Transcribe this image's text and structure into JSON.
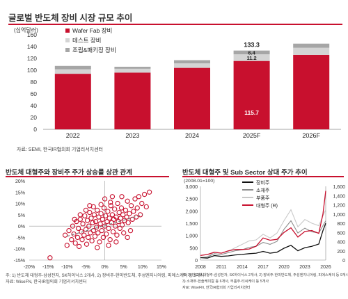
{
  "top": {
    "title": "글로벌 반도체 장비 시장 규모 추이",
    "source": "자료: SEMI, 한국IR협의회 기업리서치센터"
  },
  "scatter_panel": {
    "title": "반도체 대형주와 장비주 주가 상승률 상관 관계",
    "notes": [
      "주: 1) 반도체 대형주-삼성전자, SK하이닉스 2개사, 2) 장비주-한미반도체, 주성엔지니어링, 피에스케이 등 9개사",
      "자료: WiseFN, 한국IR협의회 기업리서치센터"
    ]
  },
  "line_panel": {
    "title": "반도체 대형주 및 Sub Sector 상대 주가 추이",
    "notes": [
      "주: 1) 반도체 대형주-삼성전자, SK하이닉스 2개사, 2) 장비주-한미반도체, 주성엔지니어링, 피에스케이 등 9개사,",
      "3) 소재주-한솔케미칼 등 6개사, 부품주-티씨케이 등 5개사",
      "자료: WiseFN, 한국IR협의회 기업리서치센터"
    ]
  },
  "colors": {
    "accent": "#c8102e",
    "test": "#d4d4d4",
    "packaging": "#a6a6a6",
    "trend": "#777777"
  },
  "chart_data": [
    {
      "type": "bar",
      "stacked": true,
      "ylabel": "(십억달러)",
      "ylim": [
        0,
        160
      ],
      "yticks": [
        0,
        20,
        40,
        60,
        80,
        100,
        120,
        140,
        160
      ],
      "categories": [
        "2022",
        "2023",
        "2024",
        "2025F",
        "2026F"
      ],
      "series": [
        {
          "name": "Wafer Fab 장비",
          "color": "#c8102e",
          "values": [
            94,
            96,
            104,
            115.7,
            126
          ]
        },
        {
          "name": "테스트 장비",
          "color": "#d4d4d4",
          "values": [
            7.5,
            6.5,
            7.6,
            11.2,
            12
          ]
        },
        {
          "name": "조립&패키징 장비",
          "color": "#a6a6a6",
          "values": [
            5.8,
            3.4,
            5.4,
            6.4,
            7
          ]
        }
      ],
      "data_labels": {
        "total": "133.3",
        "test": "11.2",
        "packaging": "6.4",
        "wafer": "115.7"
      },
      "legend_position": "top-left",
      "grid": false
    },
    {
      "type": "scatter",
      "xlim": [
        -0.2,
        0.15
      ],
      "ylim": [
        -0.15,
        0.2
      ],
      "xticks": [
        "-20%",
        "-15%",
        "-10%",
        "-5%",
        "0%",
        "5%",
        "10%",
        "15%"
      ],
      "yticks": [
        "20%",
        "15%",
        "10%",
        "5%",
        "0%",
        "-5%",
        "-10%",
        "-15%"
      ],
      "trend_line": {
        "x": [
          -0.1,
          0.1
        ],
        "y": [
          -0.045,
          0.05
        ]
      },
      "marker": "open-circle",
      "point_color": "#c8102e",
      "points": [
        [
          -0.145,
          -0.14
        ],
        [
          -0.105,
          -0.04
        ],
        [
          -0.1,
          -0.085
        ],
        [
          -0.095,
          -0.02
        ],
        [
          -0.088,
          -0.06
        ],
        [
          -0.085,
          0.0
        ],
        [
          -0.082,
          -0.035
        ],
        [
          -0.078,
          -0.075
        ],
        [
          -0.075,
          0.02
        ],
        [
          -0.072,
          -0.05
        ],
        [
          -0.07,
          -0.01
        ],
        [
          -0.068,
          -0.09
        ],
        [
          -0.065,
          0.03
        ],
        [
          -0.062,
          -0.025
        ],
        [
          -0.06,
          -0.06
        ],
        [
          -0.058,
          0.01
        ],
        [
          -0.055,
          -0.04
        ],
        [
          -0.053,
          0.045
        ],
        [
          -0.05,
          -0.015
        ],
        [
          -0.048,
          -0.08
        ],
        [
          -0.046,
          0.025
        ],
        [
          -0.044,
          -0.05
        ],
        [
          -0.042,
          0.0
        ],
        [
          -0.04,
          0.06
        ],
        [
          -0.038,
          -0.03
        ],
        [
          -0.036,
          0.035
        ],
        [
          -0.034,
          -0.065
        ],
        [
          -0.032,
          0.015
        ],
        [
          -0.03,
          -0.02
        ],
        [
          -0.028,
          0.05
        ],
        [
          -0.026,
          -0.045
        ],
        [
          -0.024,
          0.02
        ],
        [
          -0.022,
          -0.005
        ],
        [
          -0.02,
          0.07
        ],
        [
          -0.018,
          -0.03
        ],
        [
          -0.016,
          0.04
        ],
        [
          -0.014,
          -0.07
        ],
        [
          -0.012,
          0.01
        ],
        [
          -0.01,
          0.055
        ],
        [
          -0.008,
          -0.02
        ],
        [
          -0.006,
          0.03
        ],
        [
          -0.004,
          -0.05
        ],
        [
          -0.002,
          0.08
        ],
        [
          0.0,
          0.0
        ],
        [
          0.002,
          0.045
        ],
        [
          0.004,
          -0.035
        ],
        [
          0.006,
          0.02
        ],
        [
          0.008,
          0.065
        ],
        [
          0.01,
          -0.01
        ],
        [
          0.012,
          0.035
        ],
        [
          0.014,
          -0.06
        ],
        [
          0.016,
          0.09
        ],
        [
          0.018,
          0.015
        ],
        [
          0.02,
          0.05
        ],
        [
          0.022,
          -0.025
        ],
        [
          0.024,
          0.03
        ],
        [
          0.026,
          0.075
        ],
        [
          0.028,
          0.0
        ],
        [
          0.03,
          0.04
        ],
        [
          0.032,
          -0.04
        ],
        [
          0.034,
          0.1
        ],
        [
          0.036,
          0.02
        ],
        [
          0.038,
          0.06
        ],
        [
          0.04,
          -0.01
        ],
        [
          0.042,
          0.035
        ],
        [
          0.044,
          0.08
        ],
        [
          0.046,
          0.005
        ],
        [
          0.048,
          0.05
        ],
        [
          0.05,
          -0.03
        ],
        [
          0.052,
          0.025
        ],
        [
          0.055,
          0.07
        ],
        [
          0.058,
          0.04
        ],
        [
          0.06,
          0.11
        ],
        [
          0.062,
          0.015
        ],
        [
          0.065,
          0.055
        ],
        [
          0.068,
          -0.02
        ],
        [
          0.07,
          0.09
        ],
        [
          0.073,
          0.03
        ],
        [
          0.076,
          0.065
        ],
        [
          0.08,
          0.12
        ],
        [
          0.083,
          0.04
        ],
        [
          0.086,
          0.08
        ],
        [
          0.09,
          0.13
        ],
        [
          0.094,
          0.05
        ],
        [
          0.098,
          0.1
        ],
        [
          0.105,
          0.14
        ],
        [
          0.11,
          0.085
        ],
        [
          0.118,
          0.15
        ],
        [
          -0.05,
          0.07
        ],
        [
          -0.03,
          0.085
        ],
        [
          0.0,
          0.12
        ],
        [
          0.02,
          0.13
        ],
        [
          -0.01,
          0.095
        ],
        [
          0.015,
          0.105
        ],
        [
          -0.065,
          0.05
        ],
        [
          0.045,
          0.13
        ],
        [
          -0.08,
          0.03
        ],
        [
          0.03,
          -0.07
        ],
        [
          -0.02,
          -0.095
        ],
        [
          0.01,
          -0.085
        ],
        [
          0.06,
          -0.05
        ],
        [
          -0.04,
          0.09
        ]
      ],
      "grid": false
    },
    {
      "type": "line",
      "ylabel": "(2008.01=100)",
      "ylim": [
        0,
        3000
      ],
      "yticks": [
        0,
        500,
        1000,
        1500,
        2000,
        2500,
        3000
      ],
      "y2lim": [
        0,
        1600
      ],
      "y2ticks": [
        0,
        200,
        400,
        600,
        800,
        1000,
        1200,
        1400,
        1600
      ],
      "xlim": [
        2008,
        2026
      ],
      "xticks": [
        "2008",
        "2011",
        "2014",
        "2017",
        "2020",
        "2023",
        "2026"
      ],
      "legend_position": "top-left",
      "grid": false,
      "series": [
        {
          "name": "장비주",
          "color": "#111111",
          "axis": "left",
          "x": [
            2008,
            2009,
            2010,
            2011,
            2012,
            2013,
            2014,
            2015,
            2016,
            2017,
            2018,
            2019,
            2020,
            2021,
            2022,
            2023,
            2024,
            2025,
            2025.6,
            2026
          ],
          "y": [
            100,
            80,
            180,
            150,
            170,
            210,
            230,
            260,
            280,
            350,
            280,
            320,
            480,
            600,
            380,
            500,
            560,
            650,
            1200,
            1500
          ]
        },
        {
          "name": "소재주",
          "color": "#8c8c8c",
          "axis": "left",
          "x": [
            2008,
            2009,
            2010,
            2011,
            2012,
            2013,
            2014,
            2015,
            2016,
            2017,
            2018,
            2019,
            2020,
            2021,
            2022,
            2023,
            2024,
            2025,
            2025.6,
            2026
          ],
          "y": [
            100,
            120,
            260,
            230,
            300,
            380,
            420,
            520,
            560,
            720,
            640,
            760,
            1250,
            1600,
            1100,
            1300,
            1150,
            1100,
            1400,
            1600
          ]
        },
        {
          "name": "부품주",
          "color": "#c8c8c8",
          "axis": "left",
          "x": [
            2008,
            2009,
            2010,
            2011,
            2012,
            2013,
            2014,
            2015,
            2016,
            2017,
            2018,
            2019,
            2020,
            2021,
            2022,
            2023,
            2024,
            2025,
            2025.6,
            2026
          ],
          "y": [
            100,
            140,
            320,
            280,
            360,
            500,
            640,
            780,
            820,
            1050,
            900,
            1100,
            1600,
            2050,
            1350,
            1650,
            1500,
            1400,
            1800,
            2050
          ]
        },
        {
          "name": "대형주 (R)",
          "color": "#c8102e",
          "axis": "right",
          "x": [
            2008,
            2009,
            2010,
            2011,
            2012,
            2013,
            2014,
            2015,
            2016,
            2017,
            2018,
            2019,
            2020,
            2021,
            2022,
            2023,
            2024,
            2025,
            2025.6,
            2026
          ],
          "y": [
            100,
            120,
            170,
            150,
            200,
            230,
            230,
            240,
            300,
            480,
            430,
            450,
            600,
            700,
            500,
            620,
            640,
            580,
            1000,
            1500
          ]
        }
      ]
    }
  ]
}
